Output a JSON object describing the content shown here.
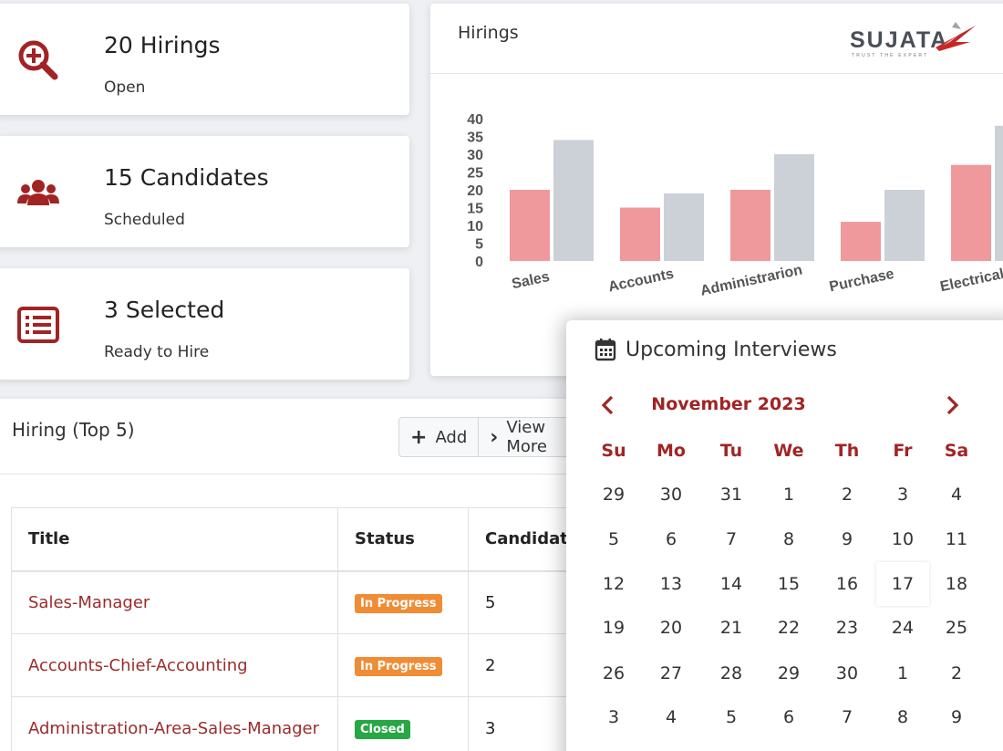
{
  "stats": [
    {
      "title": "20 Hirings",
      "subtitle": "Open",
      "icon": "search-plus-icon"
    },
    {
      "title": "15 Candidates",
      "subtitle": "Scheduled",
      "icon": "users-icon"
    },
    {
      "title": "3 Selected",
      "subtitle": "Ready to Hire",
      "icon": "list-icon"
    }
  ],
  "chart_card": {
    "title": "Hirings",
    "logo_text": "SUJATA",
    "logo_tagline": "TRUST THE EXPERT"
  },
  "chart_data": {
    "type": "bar",
    "categories": [
      "Sales",
      "Accounts",
      "Administrarion",
      "Purchase",
      "Electrical"
    ],
    "series": [
      {
        "color": "#f0999c",
        "values": [
          20,
          15,
          20,
          11,
          27
        ]
      },
      {
        "color": "#ccd1d8",
        "values": [
          34,
          19,
          30,
          20,
          38
        ]
      }
    ],
    "yticks": [
      "40",
      "35",
      "30",
      "25",
      "20",
      "15",
      "10",
      "5",
      "0"
    ],
    "ylim": [
      0,
      40
    ],
    "grid": false
  },
  "hiring": {
    "title": "Hiring (Top 5)",
    "add_label": "Add",
    "view_more_label": "View More",
    "columns": [
      "Title",
      "Status",
      "Candidates"
    ],
    "rows": [
      {
        "title": "Sales-Manager",
        "status": "In Progress",
        "status_color": "#f08c35",
        "candidates": "5"
      },
      {
        "title": "Accounts-Chief-Accounting",
        "status": "In Progress",
        "status_color": "#f08c35",
        "candidates": "2"
      },
      {
        "title": "Administration-Area-Sales-Manager",
        "status": "Closed",
        "status_color": "#28a745",
        "candidates": "3"
      }
    ]
  },
  "interviews": {
    "title": "Upcoming Interviews",
    "month": "November 2023",
    "weekdays": [
      "Su",
      "Mo",
      "Tu",
      "We",
      "Th",
      "Fr",
      "Sa"
    ],
    "weeks": [
      [
        "29",
        "30",
        "31",
        "1",
        "2",
        "3",
        "4"
      ],
      [
        "5",
        "6",
        "7",
        "8",
        "9",
        "10",
        "11"
      ],
      [
        "12",
        "13",
        "14",
        "15",
        "16",
        "17",
        "18"
      ],
      [
        "19",
        "20",
        "21",
        "22",
        "23",
        "24",
        "25"
      ],
      [
        "26",
        "27",
        "28",
        "29",
        "30",
        "1",
        "2"
      ],
      [
        "3",
        "4",
        "5",
        "6",
        "7",
        "8",
        "9"
      ]
    ],
    "today": "17"
  },
  "colors": {
    "accent": "#a12424",
    "link": "#9c2b2b"
  }
}
